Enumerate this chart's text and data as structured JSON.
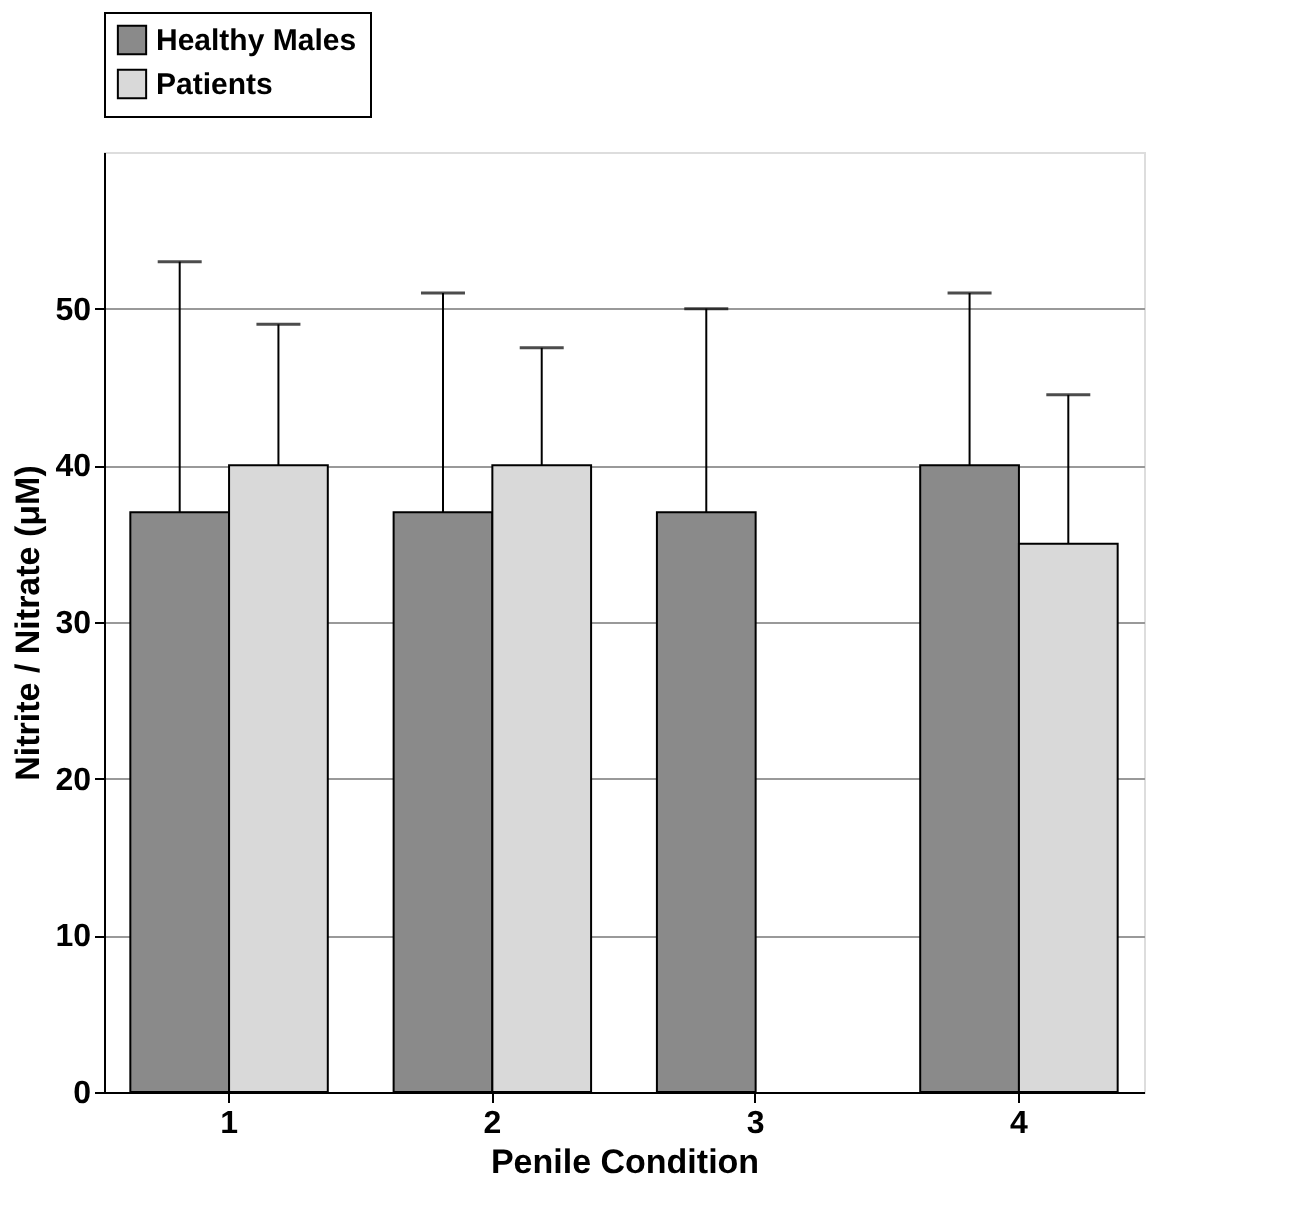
{
  "chart_data": {
    "type": "bar",
    "xlabel": "Penile Condition",
    "ylabel": "Nitrite / Nitrate (μM)",
    "categories": [
      "1",
      "2",
      "3",
      "4"
    ],
    "series": [
      {
        "name": "Healthy Males",
        "color": "#8a8a8a",
        "values": [
          37,
          37,
          37,
          40
        ],
        "errors": [
          [
            37,
            53
          ],
          [
            37,
            51
          ],
          [
            37,
            50
          ],
          [
            40,
            51
          ]
        ]
      },
      {
        "name": "Patients",
        "color": "#d9d9d9",
        "values": [
          40,
          40,
          null,
          35
        ],
        "errors": [
          [
            40,
            49
          ],
          [
            40,
            47.5
          ],
          null,
          [
            35,
            44.5
          ]
        ]
      }
    ],
    "ylim": [
      0,
      60
    ],
    "yticks": [
      0,
      10,
      20,
      30,
      40,
      50
    ],
    "grid": "y",
    "legend": "top"
  }
}
